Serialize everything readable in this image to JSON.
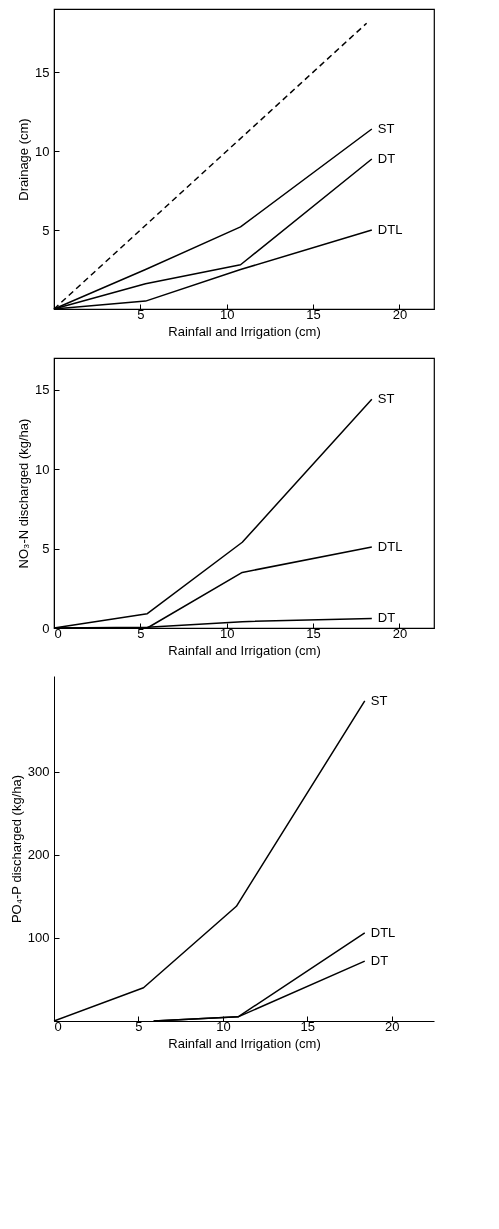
{
  "chart_data": [
    {
      "type": "line",
      "xlabel": "Rainfall and Irrigation (cm)",
      "ylabel": "Drainage (cm)",
      "xlim": [
        0,
        22
      ],
      "ylim": [
        0,
        19
      ],
      "xticks": [
        5,
        10,
        15,
        20
      ],
      "yticks": [
        5,
        10,
        15
      ],
      "grid": false,
      "series": [
        {
          "color": "#000000",
          "x": [
            0,
            18.1
          ],
          "values": [
            0,
            18.1
          ],
          "line_style": "dashed"
        },
        {
          "name": "ST",
          "color": "#000000",
          "x": [
            0,
            5.3,
            10.8,
            18.4
          ],
          "values": [
            0,
            2.5,
            5.2,
            11.4
          ]
        },
        {
          "name": "DT",
          "color": "#000000",
          "x": [
            0,
            5.3,
            10.8,
            18.4
          ],
          "values": [
            0,
            1.6,
            2.8,
            9.5
          ]
        },
        {
          "name": "DTL",
          "color": "#000000",
          "x": [
            0,
            5.3,
            10.8,
            18.4
          ],
          "values": [
            0,
            0.5,
            2.5,
            5.0
          ]
        }
      ]
    },
    {
      "type": "line",
      "xlabel": "Rainfall and Irrigation (cm)",
      "ylabel": "NO₃-N discharged (kg/ha)",
      "xlim": [
        0,
        22
      ],
      "ylim": [
        0,
        17
      ],
      "xticks": [
        0,
        5,
        10,
        15,
        20
      ],
      "yticks": [
        0,
        5,
        10,
        15
      ],
      "grid": false,
      "series": [
        {
          "name": "ST",
          "color": "#000000",
          "x": [
            0,
            5.4,
            10.9,
            18.4
          ],
          "values": [
            0,
            0.9,
            5.4,
            14.4
          ]
        },
        {
          "name": "DTL",
          "color": "#000000",
          "x": [
            0,
            5.4,
            10.9,
            18.4
          ],
          "values": [
            0,
            0,
            3.5,
            5.1
          ]
        },
        {
          "name": "DT",
          "color": "#000000",
          "x": [
            0,
            5.4,
            10.9,
            18.4
          ],
          "values": [
            0,
            0.05,
            0.4,
            0.6
          ]
        }
      ]
    },
    {
      "type": "line",
      "xlabel": "Rainfall and Irrigation (cm)",
      "ylabel": "PO₄-P discharged (kg/ha)",
      "xlim": [
        0,
        22.5
      ],
      "ylim": [
        0,
        415
      ],
      "xticks": [
        0,
        5,
        10,
        15,
        20
      ],
      "yticks": [
        100,
        200,
        300
      ],
      "grid": false,
      "series": [
        {
          "name": "ST",
          "color": "#000000",
          "x": [
            0,
            5.3,
            10.8,
            18.4
          ],
          "values": [
            0,
            40,
            138,
            385
          ]
        },
        {
          "name": "DTL",
          "color": "#000000",
          "x": [
            5.9,
            10.9,
            18.4
          ],
          "values": [
            0,
            5,
            106
          ]
        },
        {
          "name": "DT",
          "color": "#000000",
          "x": [
            5.9,
            10.9,
            18.4
          ],
          "values": [
            0,
            5,
            72
          ]
        }
      ]
    }
  ]
}
